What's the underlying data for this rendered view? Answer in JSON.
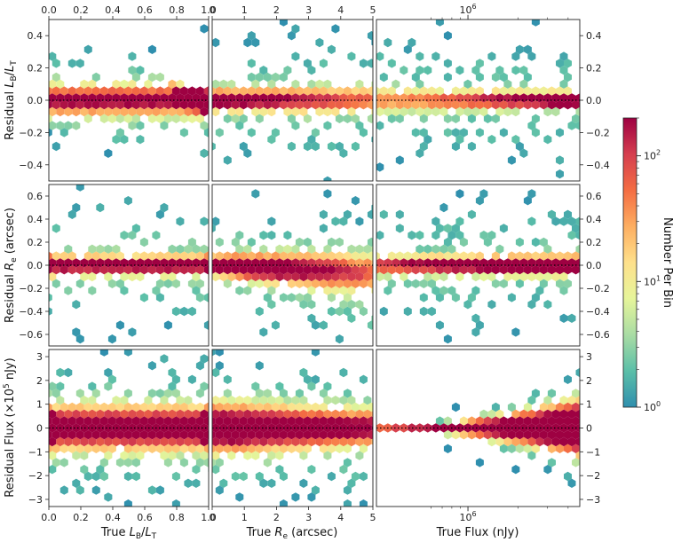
{
  "figure": {
    "colorbar": {
      "label": "Number Per Bin",
      "scale": "log",
      "range": [
        1,
        200
      ],
      "ticks": [
        {
          "value": 1,
          "mantissa": "10",
          "exp": "0"
        },
        {
          "value": 10,
          "mantissa": "10",
          "exp": "1"
        },
        {
          "value": 100,
          "mantissa": "10",
          "exp": "2"
        }
      ],
      "colors": [
        "#2f8fae",
        "#5bbfa8",
        "#a9dca4",
        "#e6f59a",
        "#fee08b",
        "#fdae61",
        "#f46d43",
        "#d53e4f",
        "#9e0142"
      ]
    }
  },
  "chart_data": [
    {
      "type": "heatmap",
      "id": "p00",
      "row": 0,
      "col": 0,
      "x": "True L_B/L_T",
      "y": "Residual L_B/L_T",
      "xlim": [
        0,
        1
      ],
      "ylim": [
        -0.5,
        0.5
      ],
      "top_ticks": [
        "0.0",
        "0.2",
        "0.4",
        "0.6",
        "0.8",
        "1.0"
      ],
      "y_ticks": [
        {
          "v": 0.4,
          "t": "0.4"
        },
        {
          "v": 0.2,
          "t": "0.2"
        },
        {
          "v": 0.0,
          "t": "0.0"
        },
        {
          "v": -0.2,
          "t": "−0.2"
        },
        {
          "v": -0.4,
          "t": "−0.4"
        }
      ]
    },
    {
      "type": "heatmap",
      "id": "p01",
      "row": 0,
      "col": 1,
      "x": "True R_e (arcsec)",
      "y": "Residual L_B/L_T",
      "xlim": [
        0,
        5
      ],
      "ylim": [
        -0.5,
        0.5
      ],
      "top_ticks": [
        "0",
        "1",
        "2",
        "3",
        "4",
        "5"
      ]
    },
    {
      "type": "heatmap",
      "id": "p02",
      "row": 0,
      "col": 2,
      "x": "True Flux (nJy)",
      "y": "Residual L_B/L_T",
      "xscale": "log",
      "ylim": [
        -0.5,
        0.5
      ],
      "top_ticks": [
        {
          "mantissa": "10",
          "exp": "6"
        }
      ],
      "right_ticks": [
        {
          "v": 0.4,
          "t": "0.4"
        },
        {
          "v": 0.2,
          "t": "0.2"
        },
        {
          "v": 0.0,
          "t": "0.0"
        },
        {
          "v": -0.2,
          "t": "−0.2"
        },
        {
          "v": -0.4,
          "t": "−0.4"
        }
      ]
    },
    {
      "type": "heatmap",
      "id": "p10",
      "row": 1,
      "col": 0,
      "x": "True L_B/L_T",
      "y": "Residual R_e (arcsec)",
      "xlim": [
        0,
        1
      ],
      "ylim": [
        -0.7,
        0.7
      ],
      "y_ticks": [
        {
          "v": 0.6,
          "t": "0.6"
        },
        {
          "v": 0.4,
          "t": "0.4"
        },
        {
          "v": 0.2,
          "t": "0.2"
        },
        {
          "v": 0.0,
          "t": "0.0"
        },
        {
          "v": -0.2,
          "t": "−0.2"
        },
        {
          "v": -0.4,
          "t": "−0.4"
        },
        {
          "v": -0.6,
          "t": "−0.6"
        }
      ]
    },
    {
      "type": "heatmap",
      "id": "p11",
      "row": 1,
      "col": 1,
      "x": "True R_e (arcsec)",
      "y": "Residual R_e (arcsec)",
      "xlim": [
        0,
        5
      ],
      "ylim": [
        -0.7,
        0.7
      ]
    },
    {
      "type": "heatmap",
      "id": "p12",
      "row": 1,
      "col": 2,
      "x": "True Flux (nJy)",
      "y": "Residual R_e (arcsec)",
      "xscale": "log",
      "ylim": [
        -0.7,
        0.7
      ],
      "right_ticks": [
        {
          "v": 0.6,
          "t": "0.6"
        },
        {
          "v": 0.4,
          "t": "0.4"
        },
        {
          "v": 0.2,
          "t": "0.2"
        },
        {
          "v": 0.0,
          "t": "0.0"
        },
        {
          "v": -0.2,
          "t": "−0.2"
        },
        {
          "v": -0.4,
          "t": "−0.4"
        },
        {
          "v": -0.6,
          "t": "−0.6"
        }
      ]
    },
    {
      "type": "heatmap",
      "id": "p20",
      "row": 2,
      "col": 0,
      "x": "True L_B/L_T",
      "y": "Residual Flux (×10^5 nJy)",
      "xlim": [
        0,
        1
      ],
      "ylim": [
        -3.3,
        3.3
      ],
      "y_ticks": [
        {
          "v": 3,
          "t": "3"
        },
        {
          "v": 2,
          "t": "2"
        },
        {
          "v": 1,
          "t": "1"
        },
        {
          "v": 0,
          "t": "0"
        },
        {
          "v": -1,
          "t": "−1"
        },
        {
          "v": -2,
          "t": "−2"
        },
        {
          "v": -3,
          "t": "−3"
        }
      ],
      "bottom_ticks": [
        "0.0",
        "0.2",
        "0.4",
        "0.6",
        "0.8",
        "1.0"
      ]
    },
    {
      "type": "heatmap",
      "id": "p21",
      "row": 2,
      "col": 1,
      "x": "True R_e (arcsec)",
      "y": "Residual Flux (×10^5 nJy)",
      "xlim": [
        0,
        5
      ],
      "ylim": [
        -3.3,
        3.3
      ],
      "bottom_ticks": [
        "0",
        "1",
        "2",
        "3",
        "4",
        "5"
      ]
    },
    {
      "type": "heatmap",
      "id": "p22",
      "row": 2,
      "col": 2,
      "x": "True Flux (nJy)",
      "y": "Residual Flux (×10^5 nJy)",
      "xscale": "log",
      "ylim": [
        -3.3,
        3.3
      ],
      "bottom_ticks": [
        {
          "mantissa": "10",
          "exp": "6"
        }
      ],
      "right_ticks": [
        {
          "v": 3,
          "t": "3"
        },
        {
          "v": 2,
          "t": "2"
        },
        {
          "v": 1,
          "t": "1"
        },
        {
          "v": 0,
          "t": "0"
        },
        {
          "v": -1,
          "t": "−1"
        },
        {
          "v": -2,
          "t": "−2"
        },
        {
          "v": -3,
          "t": "−3"
        }
      ]
    }
  ],
  "labels": {
    "y0": {
      "main": "Residual ",
      "italic": "L",
      "sub1": "B",
      "slash": "/",
      "italic2": "L",
      "sub2": "T"
    },
    "y1": {
      "main": "Residual ",
      "italic": "R",
      "sub": "e",
      "tail": " (arcsec)"
    },
    "y2": {
      "main": "Residual Flux (×10",
      "sup": "5",
      "tail": " nJy)"
    },
    "x0": {
      "main": "True ",
      "italic": "L",
      "sub1": "B",
      "slash": "/",
      "italic2": "L",
      "sub2": "T"
    },
    "x1": {
      "main": "True ",
      "italic": "R",
      "sub": "e",
      "tail": " (arcsec)"
    },
    "x2": {
      "main": "True Flux (nJy)"
    }
  }
}
